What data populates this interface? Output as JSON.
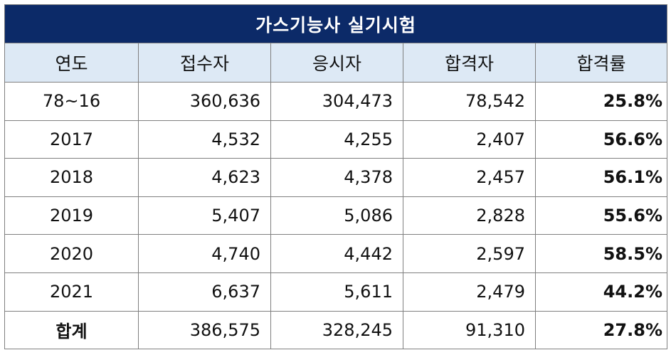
{
  "title": "가스기능사 실기시험",
  "headers": [
    "연도",
    "접수자",
    "응시자",
    "합격자",
    "합격률"
  ],
  "rows": [
    [
      "78~16",
      "360,636",
      "304,473",
      "78,542",
      "25.8%"
    ],
    [
      "2017",
      "4,532",
      "4,255",
      "2,407",
      "56.6%"
    ],
    [
      "2018",
      "4,623",
      "4,378",
      "2,457",
      "56.1%"
    ],
    [
      "2019",
      "5,407",
      "5,086",
      "2,828",
      "55.6%"
    ],
    [
      "2020",
      "4,740",
      "4,442",
      "2,597",
      "58.5%"
    ],
    [
      "2021",
      "6,637",
      "5,611",
      "2,479",
      "44.2%"
    ],
    [
      "합계",
      "386,575",
      "328,245",
      "91,310",
      "27.8%"
    ]
  ]
}
